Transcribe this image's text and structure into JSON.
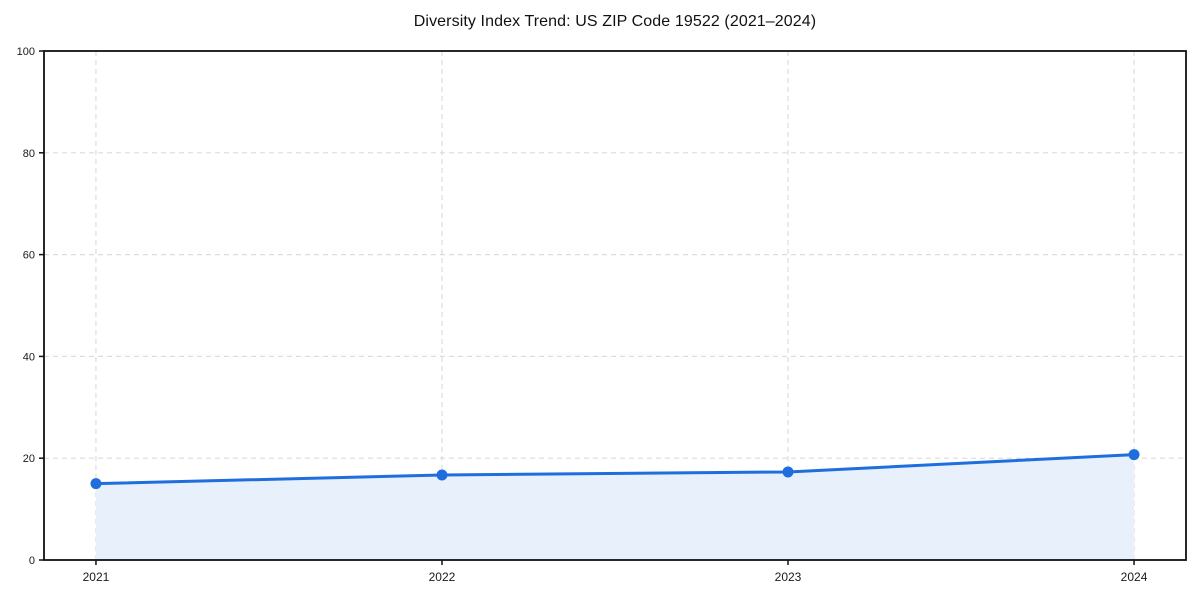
{
  "chart_data": {
    "type": "area",
    "title": "Diversity Index Trend: US ZIP Code 19522 (2021–2024)",
    "xlabel": "",
    "ylabel": "",
    "categories": [
      "2021",
      "2022",
      "2023",
      "2024"
    ],
    "series": [
      {
        "name": "Diversity Index",
        "values": [
          15.0,
          16.7,
          17.3,
          20.7
        ]
      }
    ],
    "ylim": [
      0,
      100
    ],
    "yticks": [
      0,
      20,
      40,
      60,
      80,
      100
    ],
    "grid": true,
    "grid_style": "dashed",
    "legend_position": "none",
    "colors": {
      "line": "#1f6edd",
      "marker": "#1f6edd",
      "area_fill": "#e8f0fc",
      "gridline": "#dcdcdc",
      "spine": "#111111",
      "tick_text": "#1a1a1a",
      "background": "#ffffff"
    }
  }
}
